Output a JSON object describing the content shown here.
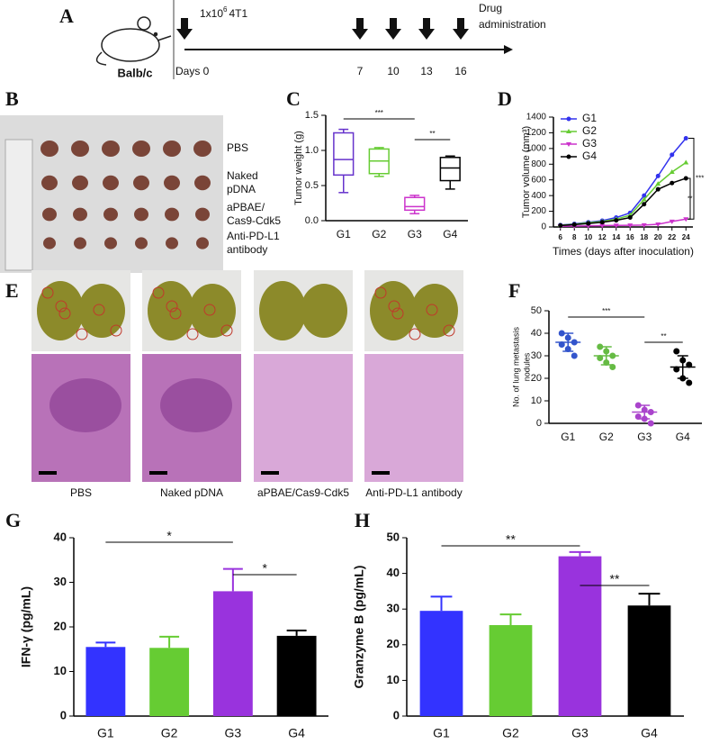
{
  "panel_a": {
    "label": "A",
    "strain": "Balb/c",
    "injection": "1x10",
    "injection_exp": "6",
    "injection_cell": "4T1",
    "days": [
      "Days 0",
      "7",
      "10",
      "13",
      "16"
    ],
    "drug": [
      "Drug",
      "administration"
    ]
  },
  "panel_b": {
    "label": "B",
    "groups": [
      [
        "PBS"
      ],
      [
        "Naked",
        "pDNA"
      ],
      [
        "aPBAE/",
        "Cas9-Cdk5"
      ],
      [
        "Anti-PD-L1",
        "antibody"
      ]
    ]
  },
  "panel_e": {
    "label": "E",
    "captions": [
      "PBS",
      "Naked pDNA",
      "aPBAE/Cas9-Cdk5",
      "Anti-PD-L1 antibody"
    ]
  },
  "chart_data": [
    {
      "type": "box",
      "panel": "C",
      "ylabel": [
        "Tumor weight (g)"
      ],
      "categories": [
        "G1",
        "G2",
        "G3",
        "G4"
      ],
      "colors": [
        "#6633cc",
        "#66cc33",
        "#cc33cc",
        "#000000"
      ],
      "boxes": [
        {
          "min": 0.4,
          "q1": 0.65,
          "median": 0.87,
          "q3": 1.25,
          "max": 1.3
        },
        {
          "min": 0.63,
          "q1": 0.67,
          "median": 0.85,
          "q3": 1.02,
          "max": 1.04
        },
        {
          "min": 0.1,
          "q1": 0.15,
          "median": 0.2,
          "q3": 0.33,
          "max": 0.36
        },
        {
          "min": 0.45,
          "q1": 0.57,
          "median": 0.75,
          "q3": 0.9,
          "max": 0.92
        }
      ],
      "ylim": [
        0,
        1.5
      ],
      "yticks": [
        {
          "value": 0,
          "label": "0.0"
        },
        0.5,
        {
          "value": 1,
          "label": "1.0"
        },
        1.5
      ],
      "annotations": [
        "***",
        "**"
      ]
    },
    {
      "type": "line",
      "panel": "D",
      "ylabel": [
        "Tumor volume (mm³)"
      ],
      "xlabel": "Times (days after inoculation)",
      "x": [
        6,
        8,
        10,
        12,
        14,
        16,
        18,
        20,
        22,
        24
      ],
      "xlim": [
        5,
        25
      ],
      "xticks": [
        6,
        8,
        10,
        12,
        14,
        16,
        18,
        20,
        22,
        24
      ],
      "ylim": [
        0,
        1400
      ],
      "yticks": [
        0,
        200,
        400,
        600,
        800,
        1000,
        1200,
        1400
      ],
      "legend": "top-left",
      "series": [
        {
          "name": "G1",
          "color": "#3333ee",
          "marker": "circle",
          "values": [
            25,
            40,
            60,
            80,
            120,
            180,
            400,
            650,
            920,
            1130
          ]
        },
        {
          "name": "G2",
          "color": "#66cc33",
          "marker": "triangle",
          "values": [
            22,
            35,
            55,
            70,
            100,
            150,
            350,
            550,
            700,
            820
          ]
        },
        {
          "name": "G3",
          "color": "#cc33cc",
          "marker": "triangle-down",
          "values": [
            10,
            12,
            15,
            18,
            20,
            22,
            25,
            35,
            70,
            100
          ]
        },
        {
          "name": "G4",
          "color": "#000000",
          "marker": "circle",
          "values": [
            18,
            30,
            45,
            60,
            85,
            120,
            290,
            480,
            560,
            620
          ]
        }
      ],
      "annotations": [
        "***",
        "**"
      ]
    },
    {
      "type": "dot",
      "panel": "F",
      "ylabel": [
        "No. of lung metastasis",
        "nodules"
      ],
      "categories": [
        "G1",
        "G2",
        "G3",
        "G4"
      ],
      "colors": [
        "#3355cc",
        "#66bb44",
        "#aa44cc",
        "#000000"
      ],
      "points": [
        [
          40,
          38,
          36,
          35,
          33,
          30
        ],
        [
          34,
          32,
          30,
          29,
          27,
          25
        ],
        [
          8,
          6,
          5,
          3,
          2,
          0
        ],
        [
          32,
          28,
          26,
          24,
          20,
          18
        ]
      ],
      "means": [
        36,
        30,
        5,
        25
      ],
      "sd": [
        4,
        4,
        3,
        5
      ],
      "ylim": [
        0,
        50
      ],
      "yticks": [
        0,
        10,
        20,
        30,
        40,
        50
      ],
      "annotations": [
        "***",
        "**"
      ]
    },
    {
      "type": "bar",
      "panel": "G",
      "ylabel": [
        "IFN-γ (pg/mL)"
      ],
      "categories": [
        "G1",
        "G2",
        "G3",
        "G4"
      ],
      "colors": [
        "#3333ff",
        "#66cc33",
        "#9933dd",
        "#000000"
      ],
      "values": [
        15.5,
        15.3,
        28,
        18
      ],
      "errors": [
        1,
        2.5,
        5,
        1.2
      ],
      "ylim": [
        0,
        40
      ],
      "yticks": [
        0,
        10,
        20,
        30,
        40
      ],
      "annotations": [
        "*",
        "*"
      ]
    },
    {
      "type": "bar",
      "panel": "H",
      "ylabel": [
        "Granzyme B (pg/mL)"
      ],
      "categories": [
        "G1",
        "G2",
        "G3",
        "G4"
      ],
      "colors": [
        "#3333ff",
        "#66cc33",
        "#9933dd",
        "#000000"
      ],
      "values": [
        29.5,
        25.5,
        44.8,
        31
      ],
      "errors": [
        4,
        3,
        1.2,
        3.3
      ],
      "ylim": [
        0,
        50
      ],
      "yticks": [
        0,
        10,
        20,
        30,
        40,
        50
      ],
      "annotations": [
        "**",
        "**"
      ]
    }
  ]
}
